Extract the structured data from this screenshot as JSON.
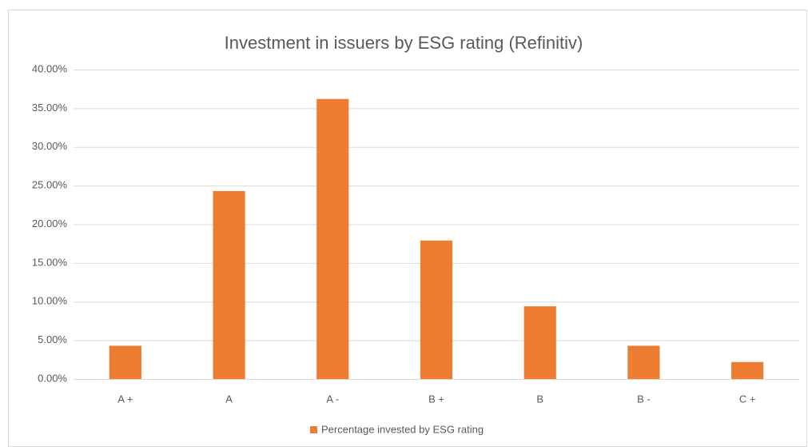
{
  "chart_data": {
    "type": "bar",
    "title": "Investment in issuers by ESG rating (Refinitiv)",
    "categories": [
      "A +",
      "A",
      "A -",
      "B +",
      "B",
      "B -",
      "C +"
    ],
    "series": [
      {
        "name": "Percentage invested by ESG rating",
        "color": "#ed7d31",
        "values": [
          4.3,
          24.3,
          36.2,
          17.9,
          9.4,
          4.3,
          2.2
        ]
      }
    ],
    "ylim": [
      0,
      40
    ],
    "yticks": [
      {
        "value": 0,
        "label": "0.00%"
      },
      {
        "value": 5,
        "label": "5.00%"
      },
      {
        "value": 10,
        "label": "10.00%"
      },
      {
        "value": 15,
        "label": "15.00%"
      },
      {
        "value": 20,
        "label": "20.00%"
      },
      {
        "value": 25,
        "label": "25.00%"
      },
      {
        "value": 30,
        "label": "30.00%"
      },
      {
        "value": 35,
        "label": "35.00%"
      },
      {
        "value": 40,
        "label": "40.00%"
      }
    ],
    "grid": true,
    "legend": "bottom"
  }
}
